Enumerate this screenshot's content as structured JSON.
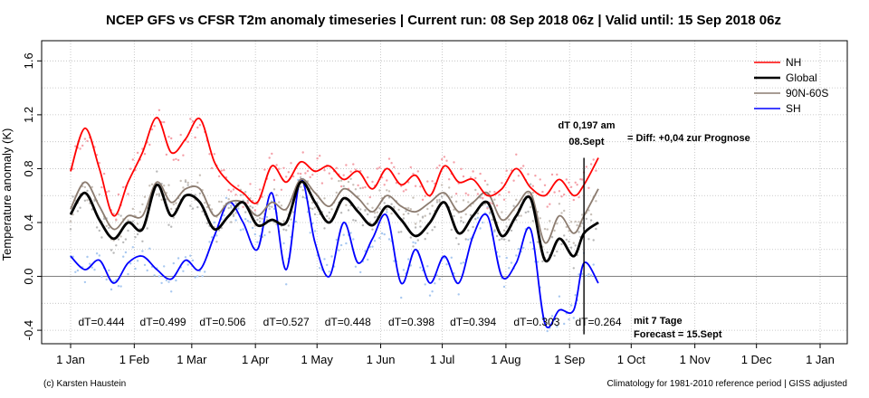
{
  "chart_data": {
    "type": "line",
    "title": "NCEP GFS vs CFSR T2m anomaly timeseries | Current run: 08 Sep 2018 06z | Valid until: 15 Sep 2018 06z",
    "ylabel": "Temperature anomaly (K)",
    "xlabel": "",
    "xlim": [
      0,
      365
    ],
    "ylim": [
      -0.5,
      1.75
    ],
    "y_ticks": [
      -0.4,
      0.0,
      0.4,
      0.8,
      1.2,
      1.6
    ],
    "y_tick_labels": [
      "-0.4",
      "0.0",
      "0.4",
      "0.8",
      "1.2",
      "1.6"
    ],
    "x_ticks": [
      0,
      31,
      59,
      90,
      120,
      151,
      181,
      212,
      243,
      273,
      304,
      334,
      365
    ],
    "x_tick_labels": [
      "1 Jan",
      "1 Feb",
      "1 Mar",
      "1 Apr",
      "1 May",
      "1 Jun",
      "1 Jul",
      "1 Aug",
      "1 Sep",
      "1 Oct",
      "1 Nov",
      "1 Dec",
      "1 Jan"
    ],
    "grid": true,
    "legend_position": "top-right",
    "forecast_marker_day": 250,
    "series": [
      {
        "name": "NH",
        "color": "#ff0000",
        "dot_color": "#f4a0a8",
        "x": [
          0,
          7,
          14,
          21,
          28,
          35,
          42,
          49,
          56,
          63,
          70,
          77,
          84,
          91,
          98,
          105,
          112,
          119,
          126,
          133,
          140,
          147,
          154,
          161,
          168,
          175,
          182,
          189,
          196,
          203,
          210,
          217,
          224,
          231,
          238,
          245,
          250,
          257
        ],
        "values": [
          0.78,
          1.1,
          0.8,
          0.45,
          0.7,
          0.92,
          1.18,
          0.92,
          1.02,
          1.17,
          0.85,
          0.7,
          0.62,
          0.55,
          0.82,
          0.7,
          0.85,
          0.78,
          0.82,
          0.72,
          0.78,
          0.65,
          0.8,
          0.68,
          0.75,
          0.6,
          0.82,
          0.7,
          0.72,
          0.6,
          0.65,
          0.8,
          0.66,
          0.6,
          0.72,
          0.6,
          0.68,
          0.88
        ]
      },
      {
        "name": "Global",
        "color": "#000000",
        "dot_color": "#b8b8b8",
        "x": [
          0,
          7,
          14,
          21,
          28,
          35,
          42,
          49,
          56,
          63,
          70,
          77,
          84,
          91,
          98,
          105,
          112,
          119,
          126,
          133,
          140,
          147,
          154,
          161,
          168,
          175,
          182,
          189,
          196,
          203,
          210,
          217,
          224,
          231,
          238,
          245,
          250,
          257
        ],
        "values": [
          0.46,
          0.62,
          0.42,
          0.28,
          0.4,
          0.35,
          0.68,
          0.45,
          0.6,
          0.55,
          0.35,
          0.45,
          0.55,
          0.38,
          0.42,
          0.4,
          0.7,
          0.55,
          0.4,
          0.58,
          0.48,
          0.38,
          0.52,
          0.42,
          0.3,
          0.4,
          0.55,
          0.32,
          0.45,
          0.55,
          0.3,
          0.45,
          0.58,
          0.12,
          0.28,
          0.15,
          0.32,
          0.4
        ]
      },
      {
        "name": "90N-60S",
        "color": "#8c7c70",
        "dot_color": "#c8c0b8",
        "x": [
          0,
          7,
          14,
          21,
          28,
          35,
          42,
          49,
          56,
          63,
          70,
          77,
          84,
          91,
          98,
          105,
          112,
          119,
          126,
          133,
          140,
          147,
          154,
          161,
          168,
          175,
          182,
          189,
          196,
          203,
          210,
          217,
          224,
          231,
          238,
          245,
          250,
          257
        ],
        "values": [
          0.5,
          0.7,
          0.52,
          0.35,
          0.45,
          0.45,
          0.7,
          0.55,
          0.65,
          0.65,
          0.45,
          0.55,
          0.55,
          0.45,
          0.55,
          0.5,
          0.72,
          0.62,
          0.52,
          0.65,
          0.58,
          0.48,
          0.6,
          0.52,
          0.48,
          0.55,
          0.62,
          0.48,
          0.55,
          0.62,
          0.42,
          0.52,
          0.62,
          0.25,
          0.45,
          0.32,
          0.45,
          0.65
        ]
      },
      {
        "name": "SH",
        "color": "#0000ff",
        "dot_color": "#a8c8f0",
        "x": [
          0,
          7,
          14,
          21,
          28,
          35,
          42,
          49,
          56,
          63,
          70,
          77,
          84,
          91,
          98,
          105,
          112,
          119,
          126,
          133,
          140,
          147,
          154,
          161,
          168,
          175,
          182,
          189,
          196,
          203,
          210,
          217,
          224,
          231,
          238,
          245,
          250,
          257
        ],
        "values": [
          0.15,
          0.05,
          0.12,
          -0.05,
          0.1,
          0.15,
          0.05,
          -0.02,
          0.12,
          0.05,
          0.3,
          0.55,
          0.4,
          0.2,
          0.62,
          0.05,
          0.72,
          0.25,
          0.0,
          0.4,
          0.1,
          0.28,
          0.45,
          -0.05,
          0.2,
          -0.05,
          0.15,
          -0.05,
          0.3,
          0.45,
          0.0,
          0.1,
          0.35,
          -0.35,
          -0.25,
          -0.25,
          0.1,
          -0.05
        ]
      }
    ],
    "dt_labels": [
      {
        "x": 15,
        "text": "dT=0.444"
      },
      {
        "x": 45,
        "text": "dT=0.499"
      },
      {
        "x": 74,
        "text": "dT=0.506"
      },
      {
        "x": 105,
        "text": "dT=0.527"
      },
      {
        "x": 135,
        "text": "dT=0.448"
      },
      {
        "x": 166,
        "text": "dT=0.398"
      },
      {
        "x": 196,
        "text": "dT=0.394"
      },
      {
        "x": 227,
        "text": "dT=0.303"
      },
      {
        "x": 257,
        "text": "dT=0.264"
      }
    ],
    "annotations": {
      "dt_am_line1": "dT 0,197 am",
      "dt_am_line2": "08.Sept",
      "diff_text": "= Diff: +0,04 zur Prognose",
      "forecast_line1": "mit 7 Tage",
      "forecast_line2": "Forecast = 15.Sept"
    }
  },
  "footer": {
    "left": "(c) Karsten Haustein",
    "right": "Climatology for 1981-2010 reference period | GISS adjusted"
  }
}
